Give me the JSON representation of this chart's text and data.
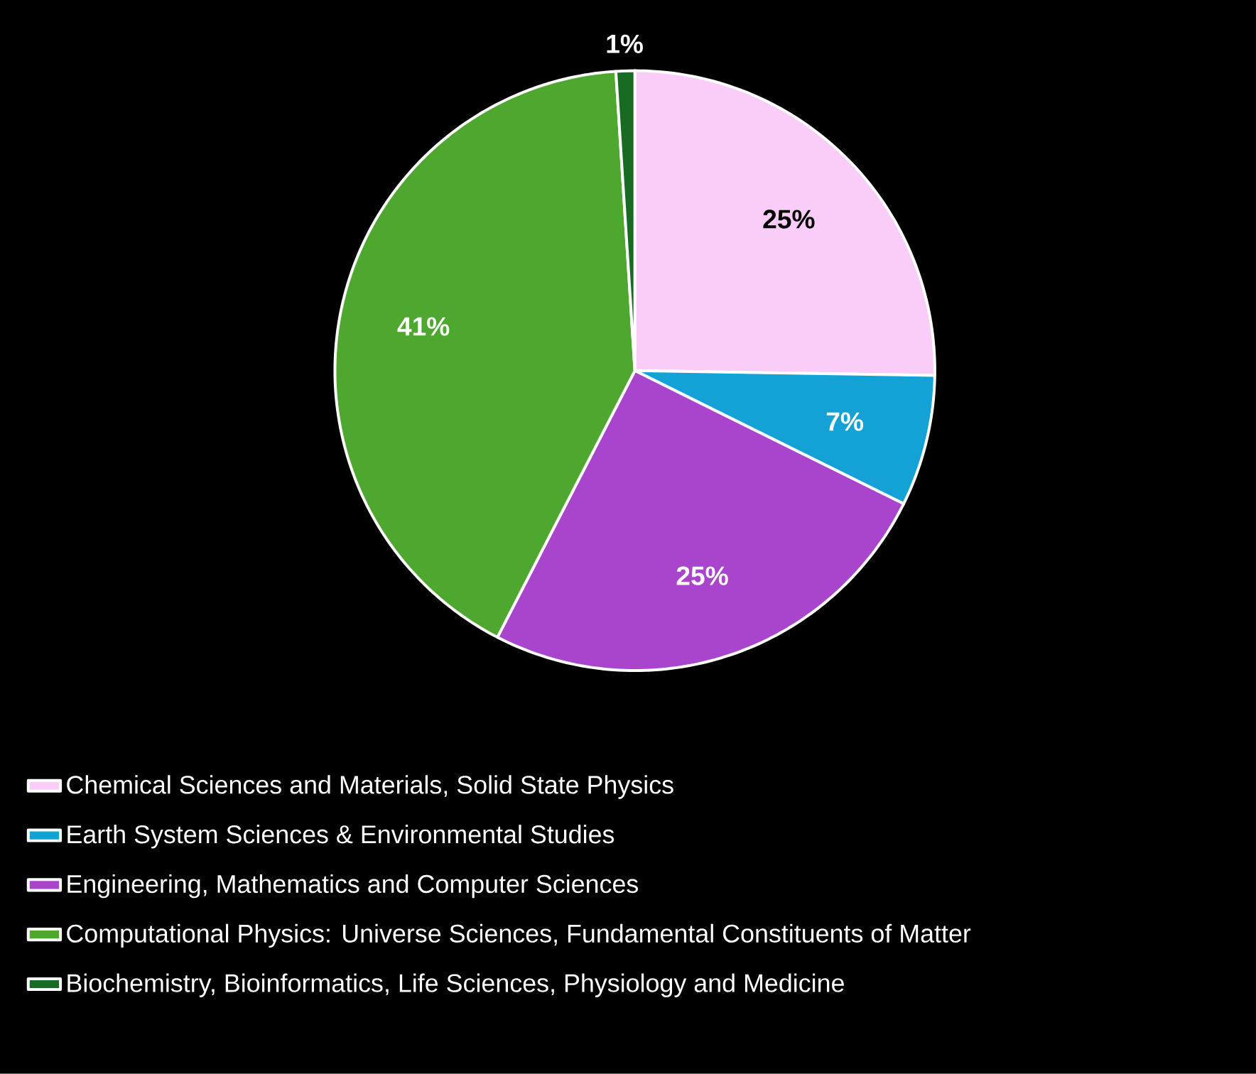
{
  "chart_data": {
    "type": "pie",
    "categories": [
      "Chemical Sciences and Materials, Solid State Physics",
      "Earth System Sciences & Environmental Studies",
      "Engineering, Mathematics and Computer Sciences",
      "Computational Physics: Universe Sciences, Fundamental Constituents of Matter",
      "Biochemistry, Bioinformatics, Life Sciences, Physiology and Medicine"
    ],
    "values": [
      25,
      7,
      25,
      41,
      1
    ],
    "value_labels": [
      "25%",
      "7%",
      "25%",
      "41%",
      "1%"
    ],
    "colors": [
      "#f9cdf7",
      "#14a2d6",
      "#a944cc",
      "#4ea72e",
      "#196b24"
    ],
    "legend": "bottom"
  }
}
